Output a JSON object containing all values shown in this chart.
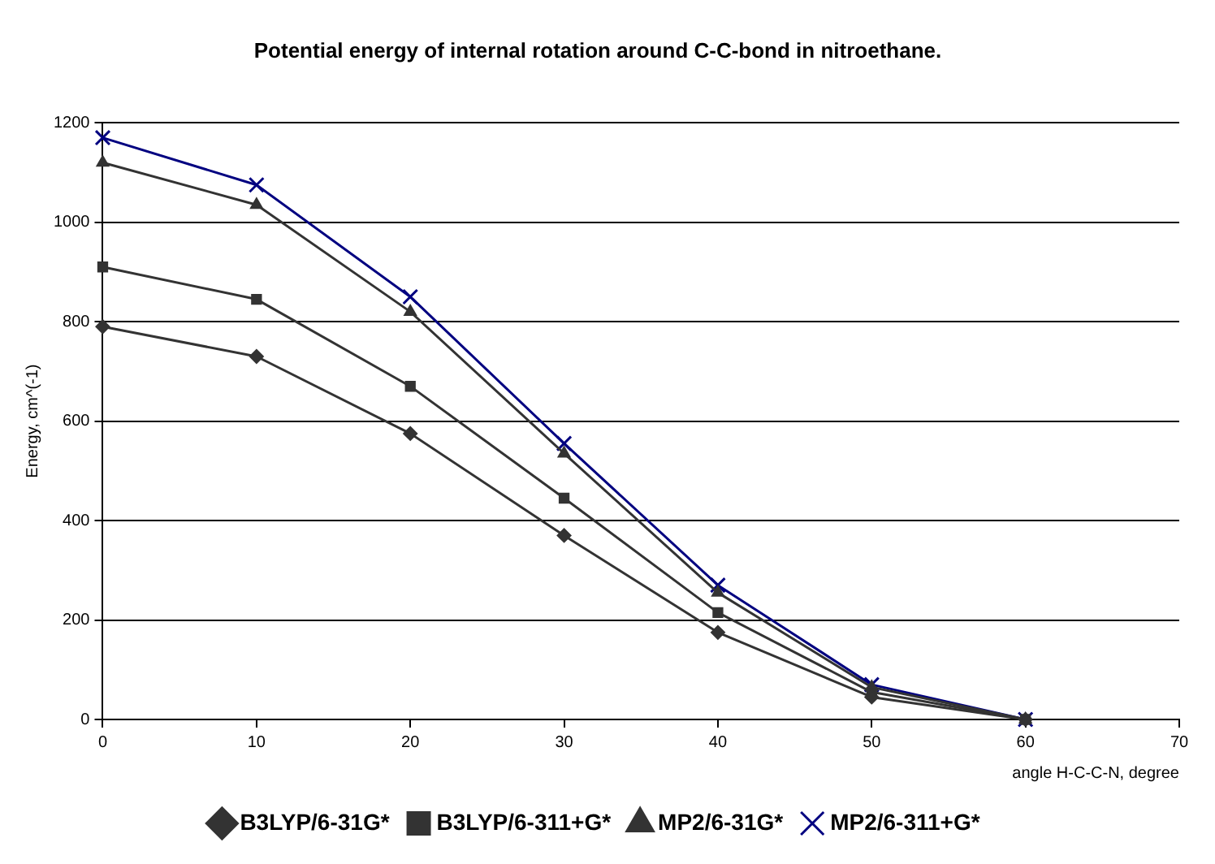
{
  "chart_data": {
    "type": "line",
    "title": "Potential energy of internal rotation around C-C-bond in nitroethane.",
    "xlabel": "angle H-C-C-N, degree",
    "ylabel": "Energy, cm^(-1)",
    "x": [
      0,
      10,
      20,
      30,
      40,
      50,
      60
    ],
    "series": [
      {
        "name": "B3LYP/6-31G*",
        "color": "#333333",
        "marker": "diamond",
        "values": [
          790,
          730,
          575,
          370,
          175,
          45,
          0
        ]
      },
      {
        "name": "B3LYP/6-311+G*",
        "color": "#333333",
        "marker": "square",
        "values": [
          910,
          845,
          670,
          445,
          215,
          55,
          0
        ]
      },
      {
        "name": "MP2/6-31G*",
        "color": "#333333",
        "marker": "triangle",
        "values": [
          1120,
          1035,
          820,
          535,
          255,
          65,
          0
        ]
      },
      {
        "name": "MP2/6-311+G*",
        "color": "#000080",
        "marker": "cross",
        "values": [
          1170,
          1075,
          850,
          555,
          270,
          70,
          0
        ]
      }
    ],
    "xlim": [
      0,
      70
    ],
    "xticks": [
      0,
      10,
      20,
      30,
      40,
      50,
      60,
      70
    ],
    "ylim": [
      0,
      1200
    ],
    "yticks": [
      0,
      200,
      400,
      600,
      800,
      1000,
      1200
    ],
    "grid": "y",
    "legend": "bottom",
    "line_style": "solid"
  }
}
